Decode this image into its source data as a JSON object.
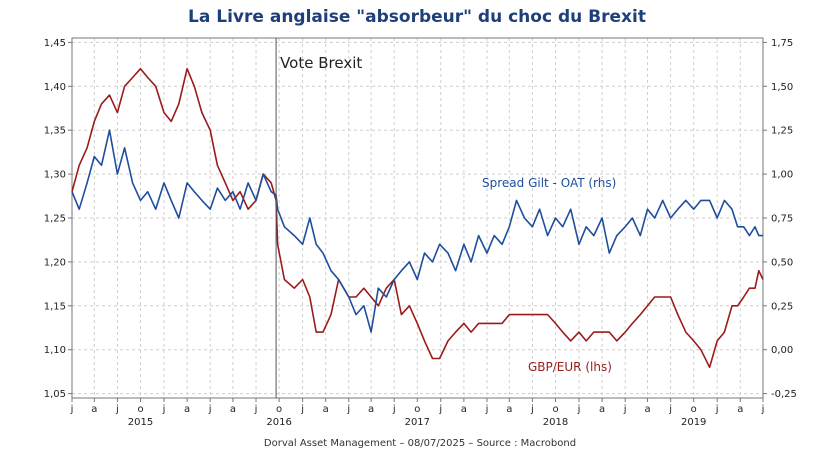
{
  "chart_data": {
    "type": "line",
    "title": "La Livre anglaise \"absorbeur\" du choc du Brexit",
    "source": "Dorval Asset Management – 08/07/2025 –   Source : Macrobond",
    "annotation": "Vote Brexit",
    "annotation_x": "2016-06-23",
    "x_range": [
      "2015-01-01",
      "2019-12-31"
    ],
    "month_ticks": [
      "2015-01-01",
      "2015-03-01",
      "2015-05-01",
      "2015-07-01",
      "2015-09-01",
      "2015-11-01",
      "2016-01-01",
      "2016-03-01",
      "2016-05-01",
      "2016-07-01",
      "2016-09-01",
      "2016-11-01",
      "2017-01-01",
      "2017-03-01",
      "2017-05-01",
      "2017-07-01",
      "2017-09-01",
      "2017-11-01",
      "2018-01-01",
      "2018-03-01",
      "2018-05-01",
      "2018-07-01",
      "2018-09-01",
      "2018-11-01",
      "2019-01-01",
      "2019-03-01",
      "2019-05-01",
      "2019-07-01",
      "2019-09-01",
      "2019-11-01"
    ],
    "month_tick_labels": [
      "j",
      "a",
      "j",
      "o",
      "j",
      "a",
      "j",
      "a",
      "j",
      "o",
      "j",
      "a",
      "j",
      "a",
      "j",
      "o",
      "j",
      "a",
      "j",
      "a",
      "j",
      "o",
      "j",
      "a",
      "j",
      "a",
      "j",
      "o",
      "j",
      "a"
    ],
    "year_labels": [
      "2015",
      "2016",
      "2017",
      "2018",
      "2019"
    ],
    "year_label_dates": [
      "2015-07-01",
      "2016-07-01",
      "2017-07-01",
      "2018-07-01",
      "2019-07-01"
    ],
    "left_axis": {
      "label": "lhs",
      "range": [
        1.045,
        1.455
      ],
      "ticks": [
        1.05,
        1.1,
        1.15,
        1.2,
        1.25,
        1.3,
        1.35,
        1.4,
        1.45
      ],
      "tick_labels": [
        "1,05",
        "1,10",
        "1,15",
        "1,20",
        "1,25",
        "1,30",
        "1,35",
        "1,40",
        "1,45"
      ]
    },
    "right_axis": {
      "label": "rhs",
      "range": [
        -0.275,
        1.775
      ],
      "ticks": [
        -0.25,
        0.0,
        0.25,
        0.5,
        0.75,
        1.0,
        1.25,
        1.5,
        1.75
      ],
      "tick_labels": [
        "-0,25",
        "0,00",
        "0,25",
        "0,50",
        "0,75",
        "1,00",
        "1,25",
        "1,50",
        "1,75"
      ]
    },
    "grid": true,
    "series": [
      {
        "name": "GBP/EUR (lhs)",
        "axis": "left",
        "color": "#9b1b1b",
        "x": [
          "2015-01-01",
          "2015-01-20",
          "2015-02-10",
          "2015-03-01",
          "2015-03-20",
          "2015-04-10",
          "2015-05-01",
          "2015-05-20",
          "2015-06-10",
          "2015-07-01",
          "2015-07-20",
          "2015-08-10",
          "2015-09-01",
          "2015-09-20",
          "2015-10-10",
          "2015-11-01",
          "2015-11-20",
          "2015-12-10",
          "2016-01-01",
          "2016-01-20",
          "2016-02-10",
          "2016-03-01",
          "2016-03-20",
          "2016-04-10",
          "2016-05-01",
          "2016-05-20",
          "2016-06-10",
          "2016-06-23",
          "2016-06-27",
          "2016-07-15",
          "2016-08-10",
          "2016-09-01",
          "2016-09-20",
          "2016-10-07",
          "2016-10-25",
          "2016-11-15",
          "2016-12-05",
          "2017-01-01",
          "2017-01-20",
          "2017-02-10",
          "2017-03-01",
          "2017-03-20",
          "2017-04-10",
          "2017-05-01",
          "2017-05-20",
          "2017-06-10",
          "2017-07-01",
          "2017-07-20",
          "2017-08-10",
          "2017-08-29",
          "2017-09-20",
          "2017-10-10",
          "2017-11-01",
          "2017-11-20",
          "2017-12-10",
          "2018-01-01",
          "2018-01-20",
          "2018-02-10",
          "2018-03-01",
          "2018-03-20",
          "2018-04-10",
          "2018-05-01",
          "2018-05-20",
          "2018-06-10",
          "2018-07-01",
          "2018-07-20",
          "2018-08-10",
          "2018-09-01",
          "2018-09-20",
          "2018-10-10",
          "2018-11-01",
          "2018-11-20",
          "2018-12-10",
          "2019-01-01",
          "2019-01-20",
          "2019-02-10",
          "2019-03-01",
          "2019-03-20",
          "2019-04-10",
          "2019-05-01",
          "2019-05-20",
          "2019-06-10",
          "2019-07-01",
          "2019-07-20",
          "2019-08-12",
          "2019-09-01",
          "2019-09-20",
          "2019-10-10",
          "2019-10-25",
          "2019-11-10",
          "2019-11-25",
          "2019-12-10",
          "2019-12-20",
          "2019-12-31"
        ],
        "values": [
          1.28,
          1.31,
          1.33,
          1.36,
          1.38,
          1.39,
          1.37,
          1.4,
          1.41,
          1.42,
          1.41,
          1.4,
          1.37,
          1.36,
          1.38,
          1.42,
          1.4,
          1.37,
          1.35,
          1.31,
          1.29,
          1.27,
          1.28,
          1.26,
          1.27,
          1.3,
          1.29,
          1.27,
          1.22,
          1.18,
          1.17,
          1.18,
          1.16,
          1.12,
          1.12,
          1.14,
          1.18,
          1.16,
          1.16,
          1.17,
          1.16,
          1.15,
          1.17,
          1.18,
          1.14,
          1.15,
          1.13,
          1.11,
          1.09,
          1.09,
          1.11,
          1.12,
          1.13,
          1.12,
          1.13,
          1.13,
          1.13,
          1.13,
          1.14,
          1.14,
          1.14,
          1.14,
          1.14,
          1.14,
          1.13,
          1.12,
          1.11,
          1.12,
          1.11,
          1.12,
          1.12,
          1.12,
          1.11,
          1.12,
          1.13,
          1.14,
          1.15,
          1.16,
          1.16,
          1.16,
          1.14,
          1.12,
          1.11,
          1.1,
          1.08,
          1.11,
          1.12,
          1.15,
          1.15,
          1.16,
          1.17,
          1.17,
          1.19,
          1.18
        ]
      },
      {
        "name": "Spread Gilt - OAT (rhs)",
        "axis": "right",
        "color": "#1f4e9e",
        "x": [
          "2015-01-01",
          "2015-01-20",
          "2015-02-10",
          "2015-03-01",
          "2015-03-20",
          "2015-04-10",
          "2015-05-01",
          "2015-05-20",
          "2015-06-10",
          "2015-07-01",
          "2015-07-20",
          "2015-08-10",
          "2015-09-01",
          "2015-09-20",
          "2015-10-10",
          "2015-11-01",
          "2015-11-20",
          "2015-12-10",
          "2016-01-01",
          "2016-01-20",
          "2016-02-10",
          "2016-03-01",
          "2016-03-20",
          "2016-04-10",
          "2016-05-01",
          "2016-05-20",
          "2016-06-10",
          "2016-06-23",
          "2016-06-27",
          "2016-07-15",
          "2016-08-10",
          "2016-09-01",
          "2016-09-20",
          "2016-10-07",
          "2016-10-25",
          "2016-11-15",
          "2016-12-05",
          "2017-01-01",
          "2017-01-20",
          "2017-02-10",
          "2017-03-01",
          "2017-03-20",
          "2017-04-10",
          "2017-05-01",
          "2017-05-20",
          "2017-06-10",
          "2017-07-01",
          "2017-07-20",
          "2017-08-10",
          "2017-08-29",
          "2017-09-20",
          "2017-10-10",
          "2017-11-01",
          "2017-11-20",
          "2017-12-10",
          "2018-01-01",
          "2018-01-20",
          "2018-02-10",
          "2018-03-01",
          "2018-03-20",
          "2018-04-10",
          "2018-05-01",
          "2018-05-20",
          "2018-06-10",
          "2018-07-01",
          "2018-07-20",
          "2018-08-10",
          "2018-09-01",
          "2018-09-20",
          "2018-10-10",
          "2018-11-01",
          "2018-11-20",
          "2018-12-10",
          "2019-01-01",
          "2019-01-20",
          "2019-02-10",
          "2019-03-01",
          "2019-03-20",
          "2019-04-10",
          "2019-05-01",
          "2019-05-20",
          "2019-06-10",
          "2019-07-01",
          "2019-07-20",
          "2019-08-12",
          "2019-09-01",
          "2019-09-20",
          "2019-10-10",
          "2019-10-25",
          "2019-11-10",
          "2019-11-25",
          "2019-12-10",
          "2019-12-20",
          "2019-12-31"
        ],
        "values": [
          0.9,
          0.8,
          0.95,
          1.1,
          1.05,
          1.25,
          1.0,
          1.15,
          0.95,
          0.85,
          0.9,
          0.8,
          0.95,
          0.85,
          0.75,
          0.95,
          0.9,
          0.85,
          0.8,
          0.92,
          0.85,
          0.9,
          0.8,
          0.95,
          0.85,
          1.0,
          0.9,
          0.88,
          0.8,
          0.7,
          0.65,
          0.6,
          0.75,
          0.6,
          0.55,
          0.45,
          0.4,
          0.3,
          0.2,
          0.25,
          0.1,
          0.35,
          0.3,
          0.4,
          0.45,
          0.5,
          0.4,
          0.55,
          0.5,
          0.6,
          0.55,
          0.45,
          0.6,
          0.5,
          0.65,
          0.55,
          0.65,
          0.6,
          0.7,
          0.85,
          0.75,
          0.7,
          0.8,
          0.65,
          0.75,
          0.7,
          0.8,
          0.6,
          0.7,
          0.65,
          0.75,
          0.55,
          0.65,
          0.7,
          0.75,
          0.65,
          0.8,
          0.75,
          0.85,
          0.75,
          0.8,
          0.85,
          0.8,
          0.85,
          0.85,
          0.75,
          0.85,
          0.8,
          0.7,
          0.7,
          0.65,
          0.7,
          0.65,
          0.65
        ]
      }
    ]
  }
}
